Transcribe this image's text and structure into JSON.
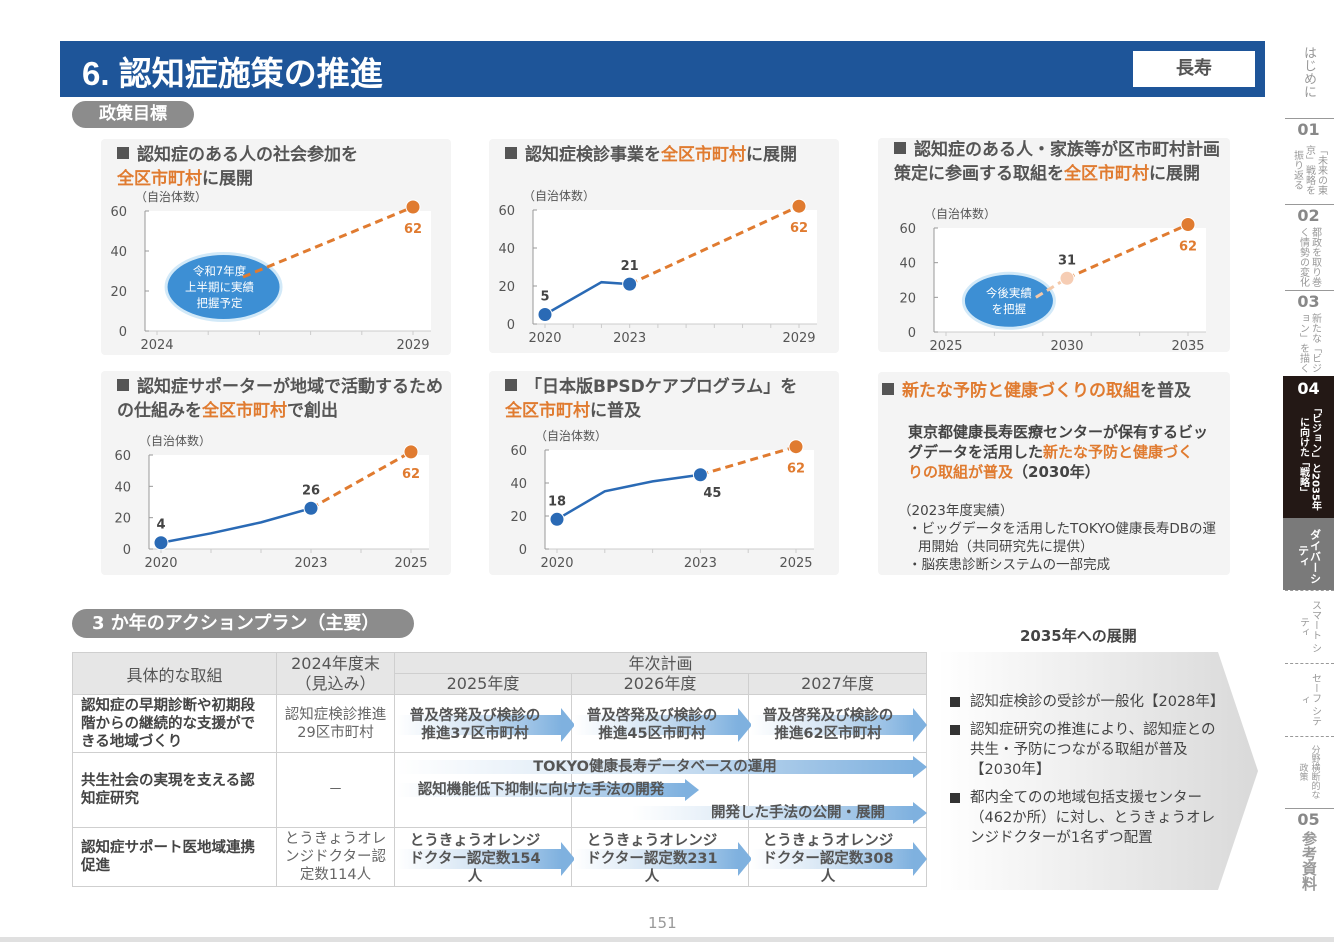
{
  "header": {
    "title": "6. 認知症施策の推進",
    "badge": "長寿",
    "colors": {
      "header_bg": "#1e5599",
      "accent_orange": "#e07b30",
      "blue_series": "#2a6ab5"
    }
  },
  "sections": {
    "goals_label": "政策目標",
    "plan_label": "3 か年のアクションプラン（主要）"
  },
  "cards": [
    {
      "title_pre": "認知症のある人の社会参加を",
      "title_hl": "全区市町村",
      "title_post": "に展開",
      "unit": "（自治体数）",
      "bubble": [
        "令和7年度",
        "上半期に実績",
        "把握予定"
      ]
    },
    {
      "title_pre": "認知症検診事業を",
      "title_hl": "全区市町村",
      "title_post": "に展開",
      "unit": "（自治体数）"
    },
    {
      "title_pre": "認知症のある人・家族等が区市町村計画策定に参画する取組を",
      "title_hl": "全区市町村",
      "title_post": "に展開",
      "unit": "（自治体数）",
      "bubble": [
        "今後実績",
        "を把握"
      ]
    },
    {
      "title_pre": "認知症サポーターが地域で活動するための仕組みを",
      "title_hl": "全区市町村",
      "title_post": "で創出",
      "unit": "（自治体数）"
    },
    {
      "title_pre": "「日本版BPSDケアプログラム」を",
      "title_hl": "全区市町村",
      "title_post": "に普及",
      "unit": "（自治体数）"
    },
    {
      "title_hl": "新たな予防と健康づくりの取組",
      "title_post": "を普及",
      "body_pre": "東京都健康長寿医療センターが保有するビッグデータを活用した",
      "body_hl": "新たな予防と健康づくりの取組が普及",
      "body_post": "（2030年）",
      "sub_head": "（2023年度実績）",
      "sub_items": [
        "・ビッグデータを活用したTOKYO健康長寿DBの運用開始（共同研究先に提供）",
        "・脳疾患診断システムの一部完成"
      ]
    }
  ],
  "chart_data": [
    {
      "type": "line",
      "ylabel": "（自治体数）",
      "ylim": [
        0,
        60
      ],
      "yticks": [
        0,
        20,
        40,
        60
      ],
      "xlim": [
        2024,
        2029
      ],
      "xticks": [
        2024,
        2029
      ],
      "actual": [],
      "target": [
        {
          "x": 2024,
          "y": 28
        },
        {
          "x": 2029,
          "y": 62
        }
      ],
      "labels": [
        {
          "x": 2029,
          "y": 62,
          "text": "62",
          "kind": "target"
        }
      ],
      "bubble": true
    },
    {
      "type": "line",
      "ylabel": "（自治体数）",
      "ylim": [
        0,
        60
      ],
      "yticks": [
        0,
        20,
        40,
        60
      ],
      "xlim": [
        2020,
        2029
      ],
      "xticks": [
        2020,
        2023,
        2029
      ],
      "actual": [
        {
          "x": 2020,
          "y": 5
        },
        {
          "x": 2022,
          "y": 22
        },
        {
          "x": 2023,
          "y": 21
        }
      ],
      "target": [
        {
          "x": 2023,
          "y": 21
        },
        {
          "x": 2029,
          "y": 62
        }
      ],
      "labels": [
        {
          "x": 2020,
          "y": 5,
          "text": "5",
          "kind": "actual"
        },
        {
          "x": 2023,
          "y": 21,
          "text": "21",
          "kind": "actual"
        },
        {
          "x": 2029,
          "y": 62,
          "text": "62",
          "kind": "target"
        }
      ]
    },
    {
      "type": "line",
      "ylabel": "（自治体数）",
      "ylim": [
        0,
        60
      ],
      "yticks": [
        0,
        20,
        40,
        60
      ],
      "xlim": [
        2025,
        2035
      ],
      "xticks": [
        2025,
        2030,
        2035
      ],
      "actual": [],
      "target": [
        {
          "x": 2028.3,
          "y": 20
        },
        {
          "x": 2030,
          "y": 31
        },
        {
          "x": 2035,
          "y": 62
        }
      ],
      "labels": [
        {
          "x": 2030,
          "y": 31,
          "text": "31",
          "kind": "actual"
        },
        {
          "x": 2035,
          "y": 62,
          "text": "62",
          "kind": "target"
        }
      ],
      "mid_point_light": true,
      "bubble": true
    },
    {
      "type": "line",
      "ylabel": "（自治体数）",
      "ylim": [
        0,
        60
      ],
      "yticks": [
        0,
        20,
        40,
        60
      ],
      "xlim": [
        2020,
        2025
      ],
      "xticks": [
        2020,
        2023,
        2025
      ],
      "actual": [
        {
          "x": 2020,
          "y": 4
        },
        {
          "x": 2021,
          "y": 10
        },
        {
          "x": 2022,
          "y": 17
        },
        {
          "x": 2023,
          "y": 26
        }
      ],
      "target": [
        {
          "x": 2023,
          "y": 26
        },
        {
          "x": 2025,
          "y": 62
        }
      ],
      "labels": [
        {
          "x": 2020,
          "y": 4,
          "text": "4",
          "kind": "actual"
        },
        {
          "x": 2023,
          "y": 26,
          "text": "26",
          "kind": "actual"
        },
        {
          "x": 2025,
          "y": 62,
          "text": "62",
          "kind": "target"
        }
      ]
    },
    {
      "type": "line",
      "ylabel": "（自治体数）",
      "ylim": [
        0,
        60
      ],
      "yticks": [
        0,
        20,
        40,
        60
      ],
      "xlim": [
        2020,
        2025
      ],
      "xticks": [
        2020,
        2023,
        2025
      ],
      "actual": [
        {
          "x": 2020,
          "y": 18
        },
        {
          "x": 2021,
          "y": 35
        },
        {
          "x": 2022,
          "y": 41
        },
        {
          "x": 2023,
          "y": 45
        }
      ],
      "target": [
        {
          "x": 2023,
          "y": 45
        },
        {
          "x": 2025,
          "y": 62
        }
      ],
      "labels": [
        {
          "x": 2020,
          "y": 18,
          "text": "18",
          "kind": "actual"
        },
        {
          "x": 2023,
          "y": 45,
          "text": "45",
          "kind": "actual-below"
        },
        {
          "x": 2025,
          "y": 62,
          "text": "62",
          "kind": "target"
        }
      ]
    }
  ],
  "plan_table": {
    "headers": {
      "initiative": "具体的な取組",
      "baseline_1": "2024年度末",
      "baseline_2": "（見込み）",
      "annual": "年次計画",
      "years": [
        "2025年度",
        "2026年度",
        "2027年度"
      ]
    },
    "rows": [
      {
        "label": "認知症の早期診断や初期段階からの継続的な支援ができる地域づくり",
        "baseline": "認知症検診推進29区市町村",
        "arrows": [
          "普及啓発及び検診の推進37区市町村",
          "普及啓発及び検診の推進45区市町村",
          "普及啓発及び検診の推進62区市町村"
        ]
      },
      {
        "label": "共生社会の実現を支える認知症研究",
        "baseline": "－",
        "arrows": [
          "TOKYO健康長寿データベースの運用",
          "認知機能低下抑制に向けた手法の開発",
          "開発した手法の公開・展開"
        ]
      },
      {
        "label": "認知症サポート医地域連携促進",
        "baseline": "とうきょうオレンジドクター認定数114人",
        "arrows": [
          "とうきょうオレンジドクター認定数154人",
          "とうきょうオレンジドクター認定数231人",
          "とうきょうオレンジドクター認定数308人"
        ]
      }
    ]
  },
  "outlook": {
    "title": "2035年への展開",
    "items": [
      "認知症検診の受診が一般化【2028年】",
      "認知症研究の推進により、認知症との共生・予防につながる取組が普及【2030年】",
      "都内全てのの地域包括支援センター（462か所）に対し、とうきょうオレンジドクターが1名ずつ配置"
    ]
  },
  "sidebar": {
    "intro": "はじめに",
    "chapters": [
      {
        "num": "01",
        "label": "「未来の東京」戦略を振り返る"
      },
      {
        "num": "02",
        "label": "都政を取り巻く情勢の変化"
      },
      {
        "num": "03",
        "label": "新たな「ビジョン」を描く"
      },
      {
        "num": "04",
        "label": "「ビジョン」と2035年に向けた「戦略」"
      }
    ],
    "sub_items": [
      "ダイバーシティ",
      "スマート シティ",
      "セーフ シティ",
      "分野横断的な政策"
    ],
    "appendix": {
      "num": "05",
      "label": "参考資料"
    }
  },
  "page_number": "151"
}
